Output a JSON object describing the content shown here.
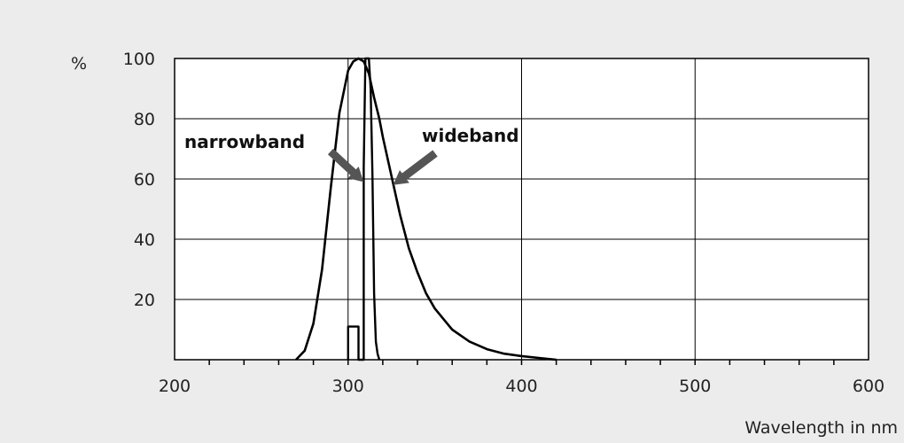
{
  "chart_data": {
    "type": "line",
    "title": "",
    "y_unit": "%",
    "xlabel": "Wavelength in nm",
    "ylabel": "",
    "xlim": [
      200,
      600
    ],
    "ylim": [
      0,
      100
    ],
    "x_ticks": [
      200,
      300,
      400,
      500,
      600
    ],
    "x_tick_labels": [
      "200",
      "300",
      "400",
      "500",
      "600"
    ],
    "y_ticks": [
      20,
      40,
      60,
      80,
      100
    ],
    "y_tick_labels": [
      "20",
      "40",
      "60",
      "80",
      "100"
    ],
    "grid": true,
    "legend": "none",
    "line_color": "#000000",
    "arrow_color": "#555555",
    "series": [
      {
        "name": "wideband",
        "x": [
          270,
          275,
          280,
          285,
          290,
          295,
          300,
          303,
          306,
          309,
          312,
          315,
          318,
          320,
          325,
          330,
          335,
          340,
          345,
          350,
          360,
          370,
          380,
          390,
          400,
          410,
          420
        ],
        "y": [
          0,
          3,
          12,
          30,
          57,
          82,
          96,
          99,
          100,
          99,
          95,
          87,
          80,
          74,
          61,
          48,
          37,
          29,
          22,
          17,
          10,
          6,
          3.5,
          2,
          1.2,
          0.6,
          0
        ]
      },
      {
        "name": "narrowband",
        "x": [
          300,
          300,
          306,
          306,
          309,
          309,
          310,
          311,
          312,
          313,
          314,
          315,
          316,
          317,
          318
        ],
        "y": [
          0,
          11,
          11,
          0,
          0,
          64,
          100,
          100,
          100,
          90,
          62,
          22,
          6,
          2,
          0
        ]
      }
    ],
    "annotations": [
      {
        "text": "narrowband",
        "target_series": "narrowband"
      },
      {
        "text": "wideband",
        "target_series": "wideband"
      }
    ]
  }
}
